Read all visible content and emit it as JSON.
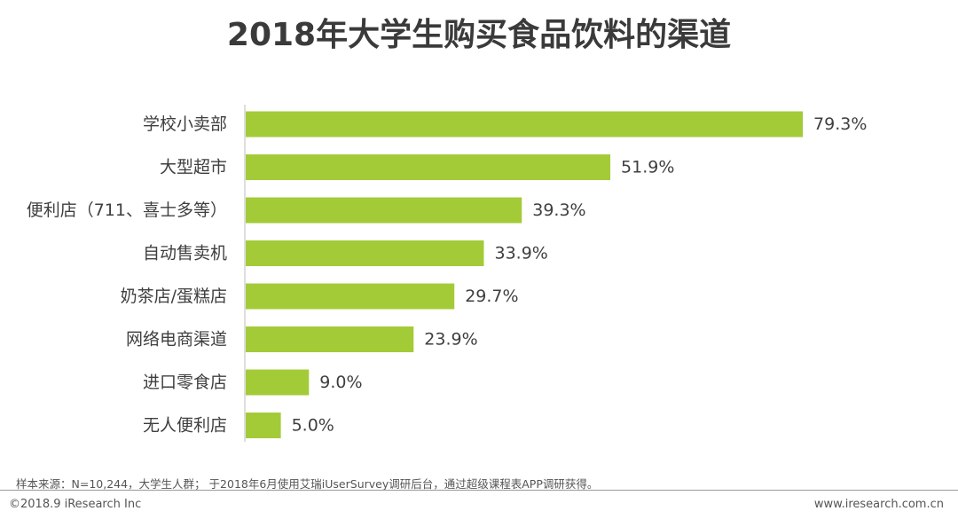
{
  "title": "2018年大学生购买食品饮料的渠道",
  "source": "样本来源：N=10,244，大学生人群； 于2018年6月使用艾瑞iUserSurvey调研后台，通过超级课程表APP调研获得。",
  "footer": {
    "copyright": "©2018.9 iResearch Inc",
    "website": "www.iresearch.com.cn"
  },
  "colors": {
    "bar": "#a3cb38",
    "text": "#3f3f3f"
  },
  "chart_data": {
    "type": "bar",
    "orientation": "horizontal",
    "title": "2018年大学生购买食品饮料的渠道",
    "categories": [
      "学校小卖部",
      "大型超市",
      "便利店（711、喜士多等）",
      "自动售卖机",
      "奶茶店/蛋糕店",
      "网络电商渠道",
      "进口零食店",
      "无人便利店"
    ],
    "values": [
      79.3,
      51.9,
      39.3,
      33.9,
      29.7,
      23.9,
      9.0,
      5.0
    ],
    "labels": [
      "79.3%",
      "51.9%",
      "39.3%",
      "33.9%",
      "29.7%",
      "23.9%",
      "9.0%",
      "5.0%"
    ],
    "unit": "%",
    "xlim": [
      0,
      100
    ],
    "xlabel": "",
    "ylabel": "",
    "grid": false,
    "legend": "none"
  }
}
